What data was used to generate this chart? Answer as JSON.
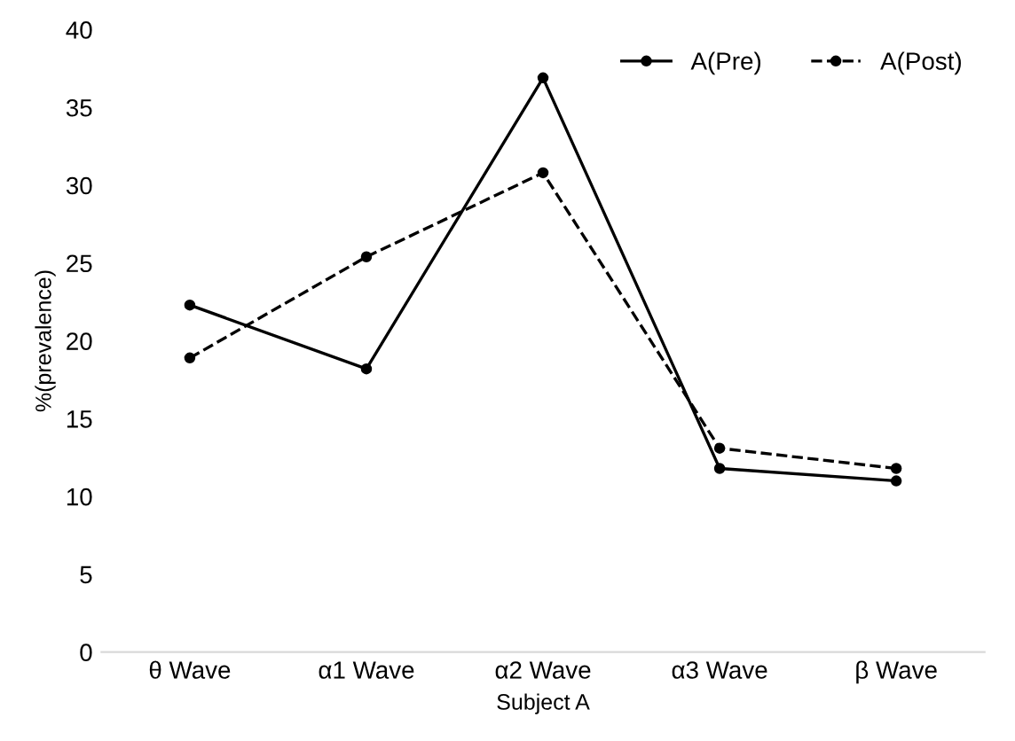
{
  "chart_data": {
    "type": "line",
    "xlabel": "Subject A",
    "ylabel": "%(prevalence)",
    "categories": [
      "θ Wave",
      "α1 Wave",
      "α2 Wave",
      "α3 Wave",
      "β Wave"
    ],
    "series": [
      {
        "name": "A(Pre)",
        "color": "#000000",
        "line_style": "solid",
        "values": [
          22.3,
          18.2,
          36.9,
          11.8,
          11.0
        ]
      },
      {
        "name": "A(Post)",
        "color": "#000000",
        "line_style": "dashed",
        "values": [
          18.9,
          25.4,
          30.8,
          13.1,
          11.8
        ]
      }
    ],
    "ylim": [
      0,
      40
    ],
    "yticks": [
      0,
      5,
      10,
      15,
      20,
      25,
      30,
      35,
      40
    ],
    "grid": false,
    "legend": "top right",
    "marker": "circle"
  }
}
